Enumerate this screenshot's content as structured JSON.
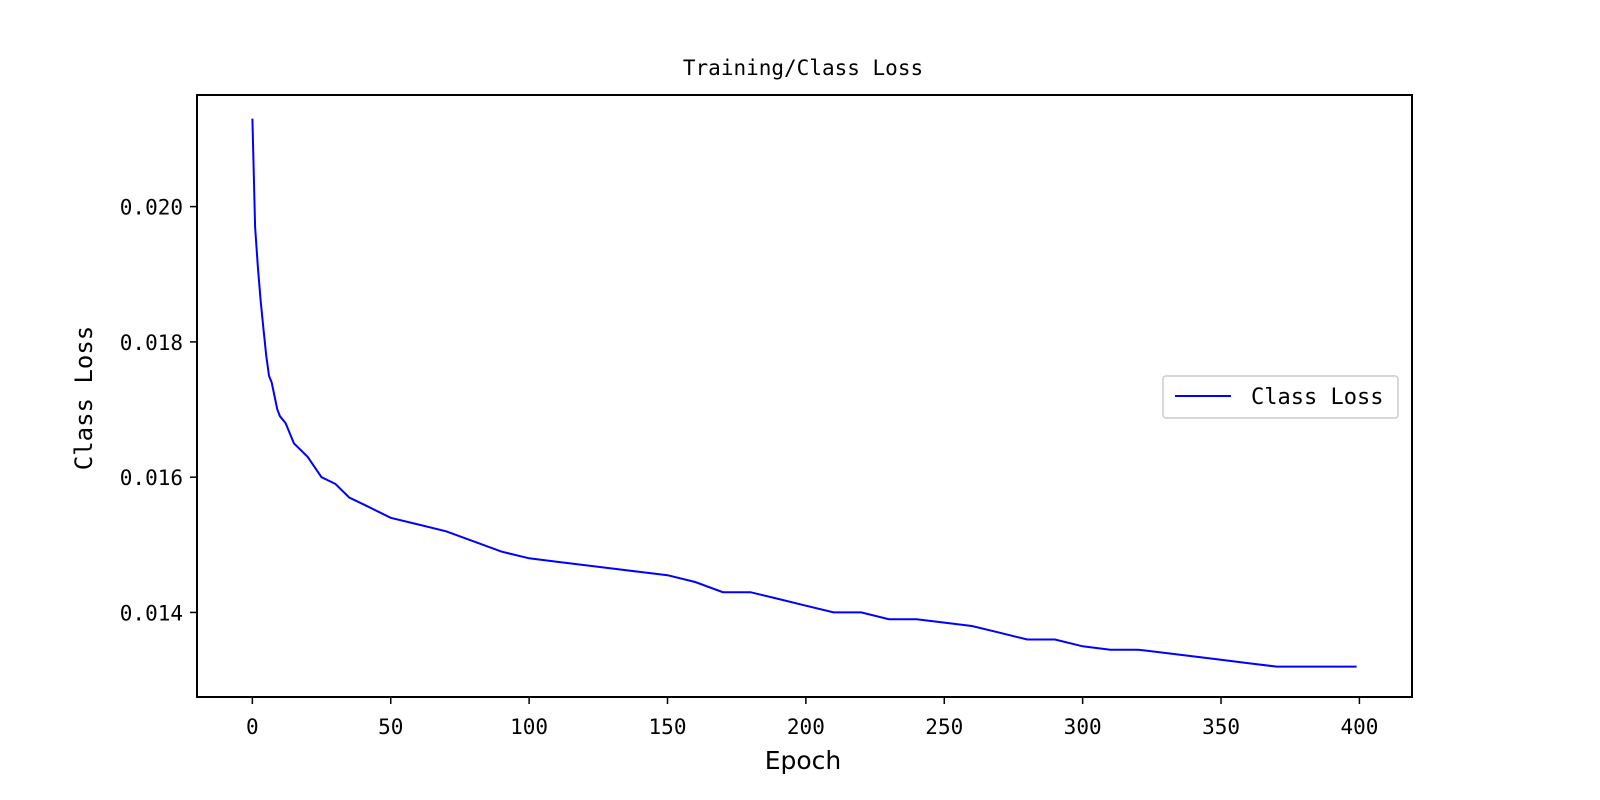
{
  "chart_data": {
    "type": "line",
    "title": "Training/Class Loss",
    "xlabel": "Epoch",
    "ylabel": "Class Loss",
    "xlim": [
      -20,
      419
    ],
    "ylim": [
      0.01275,
      0.02165
    ],
    "xticks": [
      0,
      50,
      100,
      150,
      200,
      250,
      300,
      350,
      400
    ],
    "xtick_labels": [
      "0",
      "50",
      "100",
      "150",
      "200",
      "250",
      "300",
      "350",
      "400"
    ],
    "yticks": [
      0.014,
      0.016,
      0.018,
      0.02
    ],
    "ytick_labels": [
      "0.014",
      "0.016",
      "0.018",
      "0.020"
    ],
    "grid": false,
    "legend_position": "center-right",
    "series": [
      {
        "name": "Class Loss",
        "color": "#0000ff",
        "x": [
          0,
          1,
          2,
          3,
          4,
          5,
          6,
          7,
          8,
          9,
          10,
          12,
          15,
          20,
          25,
          30,
          35,
          40,
          50,
          60,
          70,
          80,
          90,
          100,
          110,
          120,
          130,
          140,
          150,
          160,
          170,
          180,
          190,
          200,
          210,
          220,
          230,
          240,
          250,
          260,
          270,
          280,
          290,
          300,
          310,
          320,
          330,
          340,
          350,
          360,
          370,
          380,
          390,
          399
        ],
        "y": [
          0.0213,
          0.0197,
          0.0191,
          0.0186,
          0.0182,
          0.0178,
          0.0175,
          0.0174,
          0.0172,
          0.017,
          0.0169,
          0.0168,
          0.0165,
          0.0163,
          0.016,
          0.0159,
          0.0157,
          0.0156,
          0.0154,
          0.0153,
          0.0152,
          0.01505,
          0.0149,
          0.0148,
          0.01475,
          0.0147,
          0.01465,
          0.0146,
          0.01455,
          0.01445,
          0.0143,
          0.0143,
          0.0142,
          0.0141,
          0.014,
          0.014,
          0.0139,
          0.0139,
          0.01385,
          0.0138,
          0.0137,
          0.0136,
          0.0136,
          0.0135,
          0.01345,
          0.01345,
          0.0134,
          0.01335,
          0.0133,
          0.01325,
          0.0132,
          0.0132,
          0.0132,
          0.0132
        ]
      }
    ]
  }
}
